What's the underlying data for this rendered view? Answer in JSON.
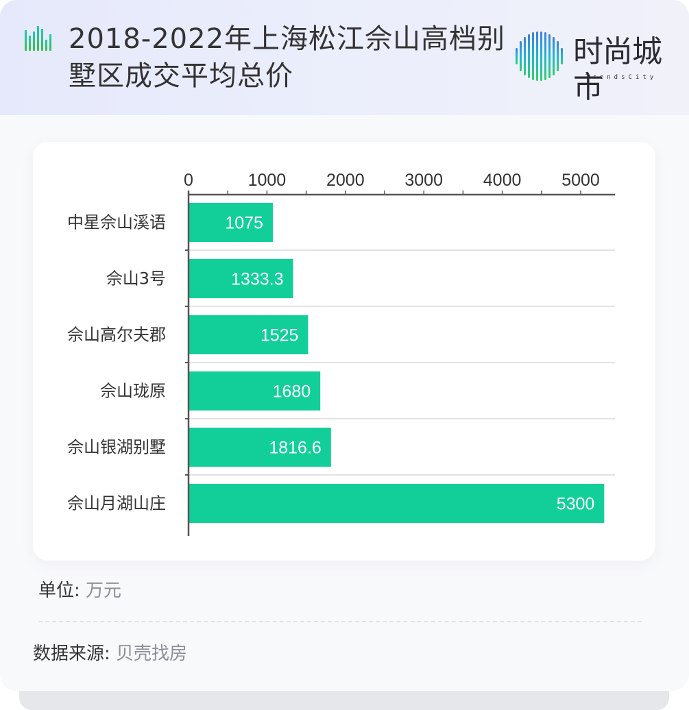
{
  "header": {
    "title": "2018-2022年上海松江佘山高档别墅区成交平均总价",
    "logo_cn": "时尚城市",
    "logo_en": "TrendsCity"
  },
  "colors": {
    "bar": "#12cf9a",
    "axis": "#555555",
    "gridline": "#d9d9dd",
    "header_bg": "#e8ebfb",
    "text": "#333333",
    "muted_text": "#8e8e98"
  },
  "footer": {
    "unit_label": "单位:",
    "unit_value": "万元",
    "source_label": "数据来源:",
    "source_value": "贝壳找房"
  },
  "chart_data": {
    "type": "bar",
    "orientation": "horizontal",
    "title": "2018-2022年上海松江佘山高档别墅区成交平均总价",
    "xlabel": "",
    "ylabel": "",
    "unit": "万元",
    "categories": [
      "中星佘山溪语",
      "佘山3号",
      "佘山高尔夫郡",
      "佘山珑原",
      "佘山银湖别墅",
      "佘山月湖山庄"
    ],
    "values": [
      1075,
      1333.3,
      1525,
      1680,
      1816.6,
      5300
    ],
    "value_labels": [
      "1075",
      "1333.3",
      "1525",
      "1680",
      "1816.6",
      "5300"
    ],
    "xlim": [
      0,
      5450
    ],
    "xticks": [
      0,
      1000,
      2000,
      3000,
      4000,
      5000
    ],
    "xtick_labels": [
      "0",
      "1000",
      "2000",
      "3000",
      "4000",
      "5000"
    ],
    "minor_tick_step": 500,
    "axis_position": "top",
    "grid": "horizontal separators between categories",
    "legend": "none",
    "source": "贝壳找房"
  }
}
